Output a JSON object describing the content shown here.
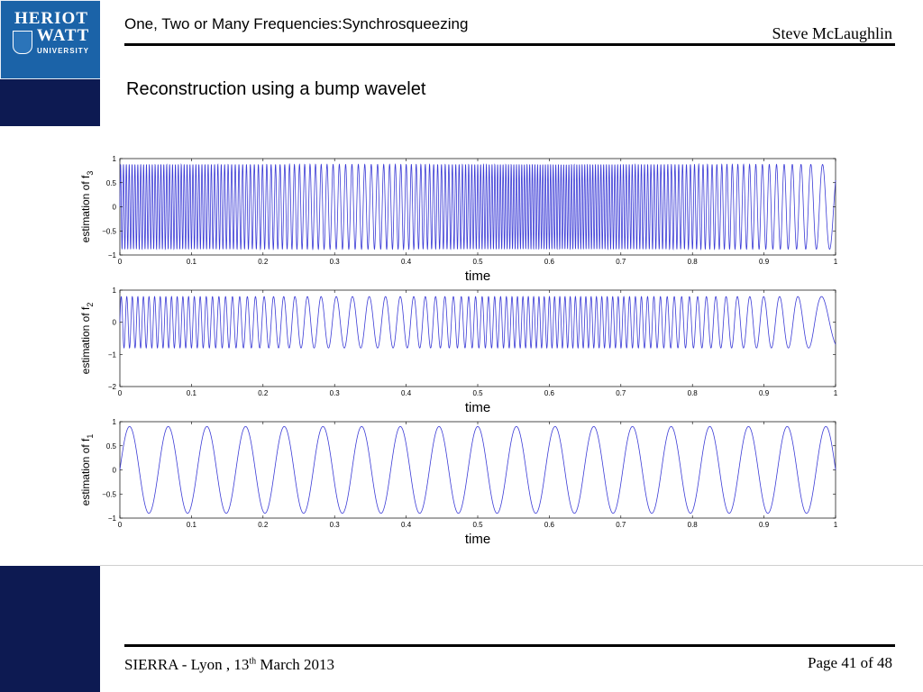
{
  "header": {
    "title": "One, Two or Many Frequencies:Synchrosqueezing",
    "author": "Steve McLaughlin"
  },
  "logo": {
    "line1": "HERIOT",
    "line2": "WATT",
    "line3": "UNIVERSITY"
  },
  "slide_title": "Reconstruction using a bump wavelet",
  "footer": {
    "event_prefix": "SIERRA - Lyon , 13",
    "event_sup": "th",
    "event_suffix": " March 2013",
    "page_label": "Page 41 of  48"
  },
  "colors": {
    "signal": "#3b3bd6",
    "sidebar": "#0d1a52",
    "logo": "#1b63a8"
  },
  "chart_data": [
    {
      "type": "line",
      "ylabel": "estimation of f",
      "ylabel_sub": "3",
      "xlabel": "time",
      "xlim": [
        0,
        1
      ],
      "ylim": [
        -1,
        1
      ],
      "x_ticks": [
        "0",
        "0.1",
        "0.2",
        "0.3",
        "0.4",
        "0.5",
        "0.6",
        "0.7",
        "0.8",
        "0.9",
        "1"
      ],
      "y_ticks": [
        "1",
        "0.5",
        "0",
        "−0.5",
        "−1"
      ],
      "signal": {
        "amplitude": 0.88,
        "freq_knots_time": [
          0,
          0.1,
          0.15,
          0.2,
          0.25,
          0.3,
          0.35,
          0.4,
          0.45,
          0.5,
          0.55,
          0.6,
          0.65,
          0.7,
          0.75,
          0.8,
          0.85,
          0.9,
          0.95,
          1.0
        ],
        "freq_knots_hz": [
          250,
          245,
          205,
          170,
          140,
          115,
          110,
          135,
          190,
          245,
          270,
          275,
          270,
          250,
          215,
          175,
          135,
          105,
          80,
          40
        ]
      }
    },
    {
      "type": "line",
      "ylabel": "estimation of f",
      "ylabel_sub": "2",
      "xlabel": "time",
      "xlim": [
        0,
        1
      ],
      "ylim": [
        -2,
        1
      ],
      "x_ticks": [
        "0",
        "0.1",
        "0.2",
        "0.3",
        "0.4",
        "0.5",
        "0.6",
        "0.7",
        "0.8",
        "0.9",
        "1"
      ],
      "y_ticks": [
        "1",
        "0",
        "−1",
        "−2"
      ],
      "signal": {
        "amplitude": 0.8,
        "freq_knots_time": [
          0,
          0.1,
          0.15,
          0.2,
          0.25,
          0.3,
          0.35,
          0.4,
          0.45,
          0.5,
          0.55,
          0.6,
          0.65,
          0.7,
          0.75,
          0.8,
          0.85,
          0.9,
          0.95,
          1.0
        ],
        "freq_knots_hz": [
          130,
          125,
          105,
          80,
          58,
          45,
          42,
          52,
          78,
          108,
          130,
          138,
          137,
          128,
          110,
          88,
          65,
          48,
          35,
          18
        ]
      }
    },
    {
      "type": "line",
      "ylabel": "estimation of f",
      "ylabel_sub": "1",
      "xlabel": "time",
      "xlim": [
        0,
        1
      ],
      "ylim": [
        -1,
        1
      ],
      "x_ticks": [
        "0",
        "0.1",
        "0.2",
        "0.3",
        "0.4",
        "0.5",
        "0.6",
        "0.7",
        "0.8",
        "0.9",
        "1"
      ],
      "y_ticks": [
        "1",
        "0.5",
        "0",
        "−0.5",
        "−1"
      ],
      "signal": {
        "amplitude": 0.9,
        "freq_knots_time": [
          0,
          1
        ],
        "freq_knots_hz": [
          18.5,
          18.5
        ]
      }
    }
  ]
}
